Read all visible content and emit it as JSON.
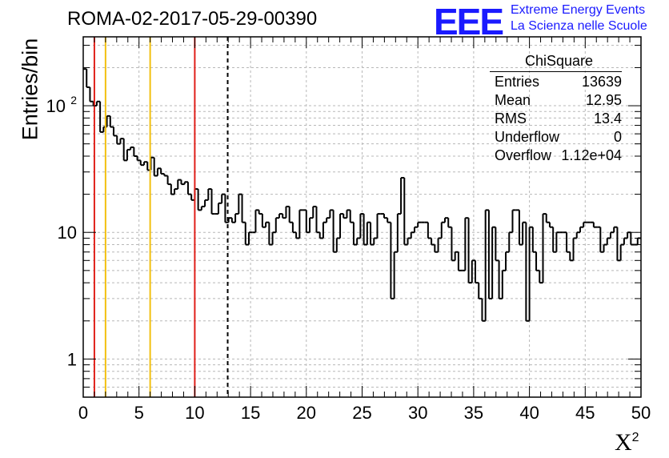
{
  "title": "ROMA-02-2017-05-29-00390",
  "logo": {
    "text": "EEE",
    "line1": "Extreme Energy Events",
    "line2": "La Scienza nelle Scuole",
    "color": "#1a1aff"
  },
  "stats": {
    "title": "ChiSquare",
    "rows": [
      {
        "label": "Entries",
        "value": "13639"
      },
      {
        "label": "Mean",
        "value": "12.95"
      },
      {
        "label": "RMS",
        "value": "13.4"
      },
      {
        "label": "Underflow",
        "value": "0"
      },
      {
        "label": "Overflow",
        "value": "1.12e+04"
      }
    ]
  },
  "chart_data": {
    "type": "histogram",
    "xlabel": "X",
    "xlabel_sup": "2",
    "ylabel": "Entries/bin",
    "xlim": [
      0,
      50
    ],
    "ylim": [
      0.5,
      350
    ],
    "yscale": "log",
    "grid": true,
    "bin_width": 1,
    "x_ticks": [
      0,
      5,
      10,
      15,
      20,
      25,
      30,
      35,
      40,
      45,
      50
    ],
    "y_ticks": [
      {
        "value": 1,
        "label": "1"
      },
      {
        "value": 10,
        "label": "10"
      },
      {
        "value": 100,
        "label": "10",
        "sup": "2"
      }
    ],
    "values": [
      195,
      140,
      108,
      100,
      108,
      62,
      68,
      83,
      68,
      58,
      50,
      55,
      37,
      45,
      47,
      40,
      37,
      34,
      36,
      31,
      39,
      28,
      32,
      29,
      28,
      24,
      20,
      22,
      26,
      24,
      25,
      20,
      18,
      22,
      15,
      16,
      18,
      22,
      14,
      14,
      17,
      20,
      12,
      13,
      12,
      14,
      20,
      12,
      8,
      10,
      10,
      15,
      14,
      11,
      12,
      8,
      10,
      13,
      14,
      13,
      16,
      12,
      10,
      9,
      15,
      15,
      10,
      13,
      16,
      10,
      9,
      12,
      13,
      15,
      7,
      9,
      14,
      13,
      15,
      12,
      8,
      9,
      14,
      8,
      12,
      8,
      9,
      14,
      14,
      13,
      12,
      3,
      7,
      14,
      27,
      8,
      9,
      10,
      11,
      12,
      12,
      12,
      9,
      8,
      7,
      9,
      12,
      13,
      11,
      6,
      7,
      5,
      5,
      13,
      4,
      6,
      4,
      3,
      2,
      15,
      3,
      11,
      6,
      3,
      5,
      7,
      10,
      15,
      15,
      8,
      12,
      2,
      11,
      7,
      5,
      4,
      14,
      12,
      11,
      7,
      10,
      10,
      10,
      7,
      6,
      9,
      10,
      11,
      12,
      12,
      12,
      11,
      11,
      7,
      8,
      9,
      10,
      11,
      6,
      8,
      9,
      10,
      8,
      8,
      9
    ],
    "vlines": [
      {
        "x": 1,
        "color": "#e0201a",
        "style": "solid"
      },
      {
        "x": 2,
        "color": "#f2c010",
        "style": "solid"
      },
      {
        "x": 6,
        "color": "#f2c010",
        "style": "solid"
      },
      {
        "x": 10,
        "color": "#e0201a",
        "style": "solid"
      },
      {
        "x": 12.95,
        "color": "#000000",
        "style": "dashed"
      }
    ]
  }
}
